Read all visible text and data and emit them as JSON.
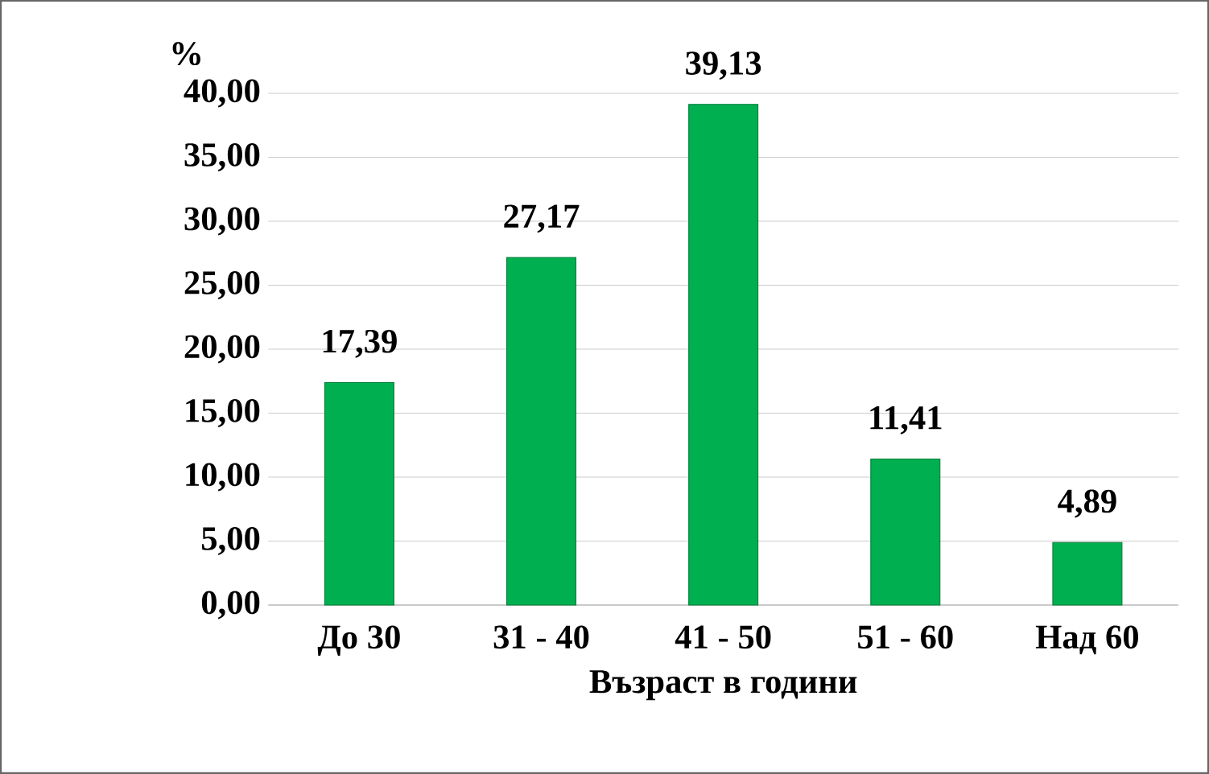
{
  "chart_data": {
    "type": "bar",
    "ylabel": "%",
    "xlabel": "Възраст в години",
    "categories": [
      "До 30",
      "31 - 40",
      "41 - 50",
      "51 - 60",
      "Над 60"
    ],
    "values": [
      17.39,
      27.17,
      39.13,
      11.41,
      4.89
    ],
    "value_labels": [
      "17,39",
      "27,17",
      "39,13",
      "11,41",
      "4,89"
    ],
    "color": "#00b050",
    "ylim": [
      0,
      40
    ],
    "yticks": [
      {
        "value": 0,
        "label": "0,00"
      },
      {
        "value": 5,
        "label": "5,00"
      },
      {
        "value": 10,
        "label": "10,00"
      },
      {
        "value": 15,
        "label": "15,00"
      },
      {
        "value": 20,
        "label": "20,00"
      },
      {
        "value": 25,
        "label": "25,00"
      },
      {
        "value": 30,
        "label": "30,00"
      },
      {
        "value": 35,
        "label": "35,00"
      },
      {
        "value": 40,
        "label": "40,00"
      }
    ],
    "grid": "y"
  }
}
